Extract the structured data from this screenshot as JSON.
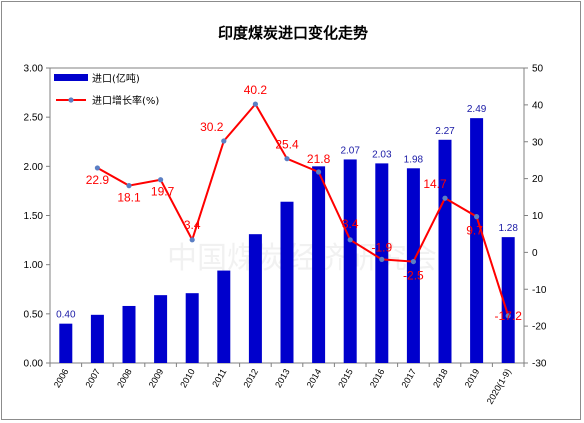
{
  "chart_data": {
    "type": "bar+line",
    "title": "印度煤炭进口变化走势",
    "watermark": "中国煤炭经济研究会",
    "categories": [
      "2006",
      "2007",
      "2008",
      "2009",
      "2010",
      "2011",
      "2012",
      "2013",
      "2014",
      "2015",
      "2016",
      "2017",
      "2018",
      "2019",
      "2020(1-9)"
    ],
    "series": [
      {
        "name": "进口(亿吨)",
        "type": "bar",
        "axis": "left",
        "color": "#0000cc",
        "values": [
          0.4,
          0.49,
          0.58,
          0.69,
          0.71,
          0.94,
          1.31,
          1.64,
          2.0,
          2.07,
          2.03,
          1.98,
          2.27,
          2.49,
          1.28
        ],
        "labels": [
          "0.40",
          null,
          null,
          null,
          null,
          null,
          null,
          null,
          null,
          "2.07",
          "2.03",
          "1.98",
          "2.27",
          "2.49",
          "1.28"
        ]
      },
      {
        "name": "进口增长率(%)",
        "type": "line",
        "axis": "right",
        "color": "#ff0000",
        "marker_color": "#5b7fc4",
        "values": [
          null,
          22.9,
          18.1,
          19.7,
          3.4,
          30.2,
          40.2,
          25.4,
          21.8,
          3.4,
          -1.9,
          -2.5,
          14.7,
          9.7,
          -17.2
        ],
        "labels": [
          null,
          "22.9",
          "18.1",
          "19.7",
          "3.4",
          "30.2",
          "40.2",
          "25.4",
          "21.8",
          "3.4",
          "-1.9",
          "-2.5",
          "14.7",
          "9.7",
          "-17.2"
        ]
      }
    ],
    "left_axis": {
      "min": 0,
      "max": 3,
      "ticks": [
        "0.00",
        "0.50",
        "1.00",
        "1.50",
        "2.00",
        "2.50",
        "3.00"
      ]
    },
    "right_axis": {
      "min": -30,
      "max": 50,
      "ticks": [
        "-30",
        "-20",
        "-10",
        "0",
        "10",
        "20",
        "30",
        "40",
        "50"
      ]
    },
    "grid": false,
    "legend_position": "top-left"
  }
}
